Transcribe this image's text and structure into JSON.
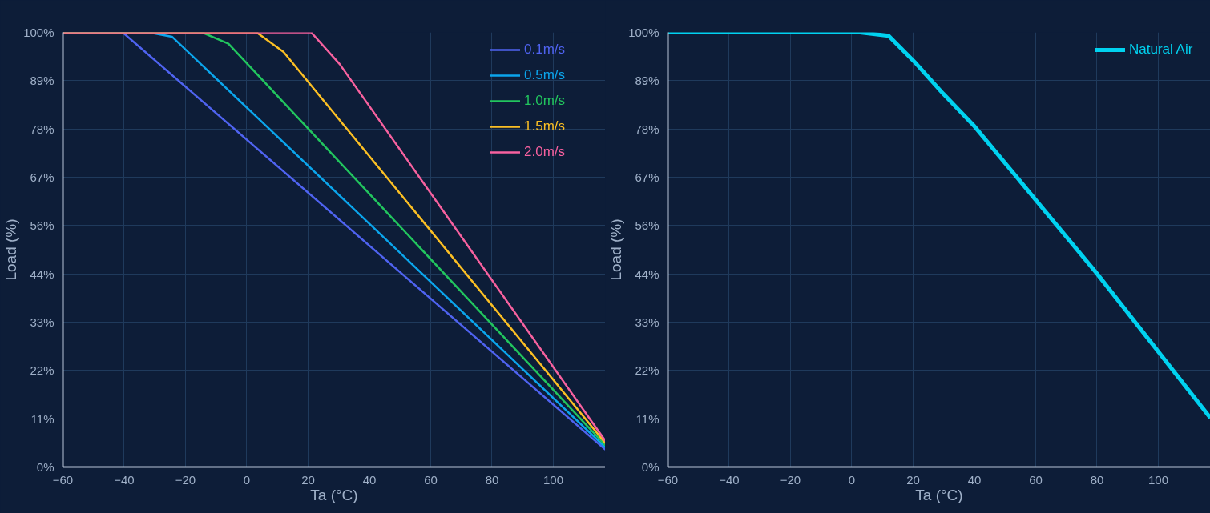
{
  "chart_data": [
    {
      "type": "line",
      "xlabel": "Ta (°C)",
      "ylabel": "Load (%)",
      "xlim": [
        -60,
        117
      ],
      "xticks": [
        -60,
        -40,
        -20,
        0,
        20,
        40,
        60,
        80,
        100
      ],
      "ylim": [
        0,
        100
      ],
      "yticks": [
        {
          "value": 0,
          "label": "0%"
        },
        {
          "value": 11.11,
          "label": "11%"
        },
        {
          "value": 22.22,
          "label": "22%"
        },
        {
          "value": 33.33,
          "label": "33%"
        },
        {
          "value": 44.44,
          "label": "44%"
        },
        {
          "value": 55.56,
          "label": "56%"
        },
        {
          "value": 66.67,
          "label": "67%"
        },
        {
          "value": 77.78,
          "label": "78%"
        },
        {
          "value": 88.89,
          "label": "89%"
        },
        {
          "value": 100,
          "label": "100%"
        }
      ],
      "grid": true,
      "legend": "top right",
      "series": [
        {
          "name": "0.1m/s",
          "color": "#4f63f0",
          "x": [
            -60,
            -40.5,
            117
          ],
          "values": [
            100,
            100,
            4
          ]
        },
        {
          "name": "0.5m/s",
          "color": "#0ba5ec",
          "x": [
            -60,
            -32,
            -24.4,
            117
          ],
          "values": [
            100,
            100,
            99,
            4.5
          ]
        },
        {
          "name": "1.0m/s",
          "color": "#22c55e",
          "x": [
            -60,
            -14.6,
            -6,
            117
          ],
          "values": [
            100,
            100,
            97.4,
            5
          ]
        },
        {
          "name": "1.5m/s",
          "color": "#fbbf24",
          "x": [
            -60,
            3.2,
            12,
            117
          ],
          "values": [
            100,
            100,
            95.5,
            5.5
          ]
        },
        {
          "name": "2.0m/s",
          "color": "#f7619f",
          "x": [
            -60,
            21,
            30.3,
            117
          ],
          "values": [
            100,
            100,
            92.7,
            6
          ]
        }
      ]
    },
    {
      "type": "line",
      "xlabel": "Ta (°C)",
      "ylabel": "Load (%)",
      "xlim": [
        -60,
        117
      ],
      "xticks": [
        -60,
        -40,
        -20,
        0,
        20,
        40,
        60,
        80,
        100
      ],
      "ylim": [
        0,
        100
      ],
      "yticks": [
        {
          "value": 0,
          "label": "0%"
        },
        {
          "value": 11.11,
          "label": "11%"
        },
        {
          "value": 22.22,
          "label": "22%"
        },
        {
          "value": 33.33,
          "label": "33%"
        },
        {
          "value": 44.44,
          "label": "44%"
        },
        {
          "value": 55.56,
          "label": "56%"
        },
        {
          "value": 66.67,
          "label": "67%"
        },
        {
          "value": 77.78,
          "label": "78%"
        },
        {
          "value": 88.89,
          "label": "89%"
        },
        {
          "value": 100,
          "label": "100%"
        }
      ],
      "grid": true,
      "legend": "top right",
      "series": [
        {
          "name": "Natural Air",
          "color": "#00d2f0",
          "x": [
            -60,
            2.7,
            12,
            21,
            29.8,
            40,
            80,
            117
          ],
          "values": [
            100,
            100,
            99.2,
            92.8,
            85.9,
            78.4,
            44.5,
            11.3
          ]
        }
      ]
    }
  ]
}
